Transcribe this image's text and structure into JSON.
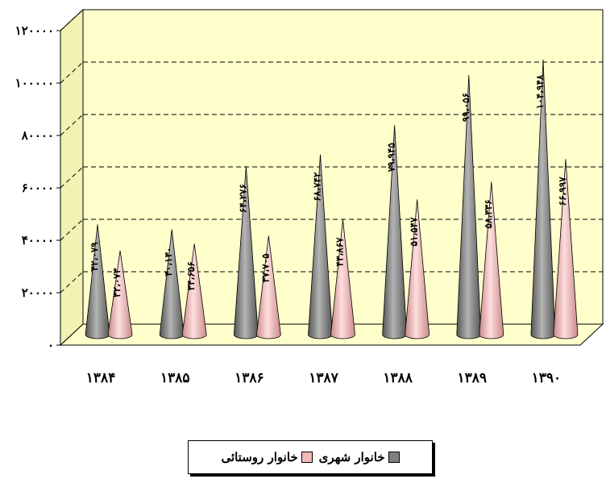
{
  "chart_data": {
    "type": "bar",
    "style": "3d-cone",
    "categories": [
      "۱۳۸۴",
      "۱۳۸۵",
      "۱۳۸۶",
      "۱۳۸۷",
      "۱۳۸۸",
      "۱۳۸۹",
      "۱۳۹۰"
    ],
    "series": [
      {
        "name": "خانوار شهری",
        "color": "#808080",
        "values": [
          42079,
          40130,
          64276,
          68742,
          79945,
          99056,
          104948
        ],
        "labels": [
          "۴۲،۰۷۹",
          "۴۰،۱۳۰",
          "۶۴،۲۷۶",
          "۶۸،۷۴۲",
          "۷۹،۹۴۵",
          "۹۹،۰۵۶",
          "۱۰۴،۹۴۸"
        ]
      },
      {
        "name": "خانوار روستائی",
        "color": "#f4b8b8",
        "values": [
          32073,
          34656,
          37705,
          43867,
          51547,
          58336,
          66997
        ],
        "labels": [
          "۳۲،۰۷۳",
          "۳۴،۶۵۶",
          "۳۷،۷۰۵",
          "۴۳،۸۶۷",
          "۵۱،۵۴۷",
          "۵۸،۳۳۶",
          "۶۶،۹۹۷"
        ]
      }
    ],
    "y_ticks": [
      0,
      20000,
      40000,
      60000,
      80000,
      100000,
      120000
    ],
    "y_tick_labels": [
      "۰",
      "۲۰۰۰۰",
      "۴۰۰۰۰",
      "۶۰۰۰۰",
      "۸۰۰۰۰",
      "۱۰۰۰۰۰",
      "۱۲۰۰۰۰"
    ],
    "ylim": [
      0,
      120000
    ],
    "grid": true,
    "legend_position": "bottom",
    "title": "",
    "xlabel": "",
    "ylabel": "",
    "plot_background": "#ffffcc"
  }
}
